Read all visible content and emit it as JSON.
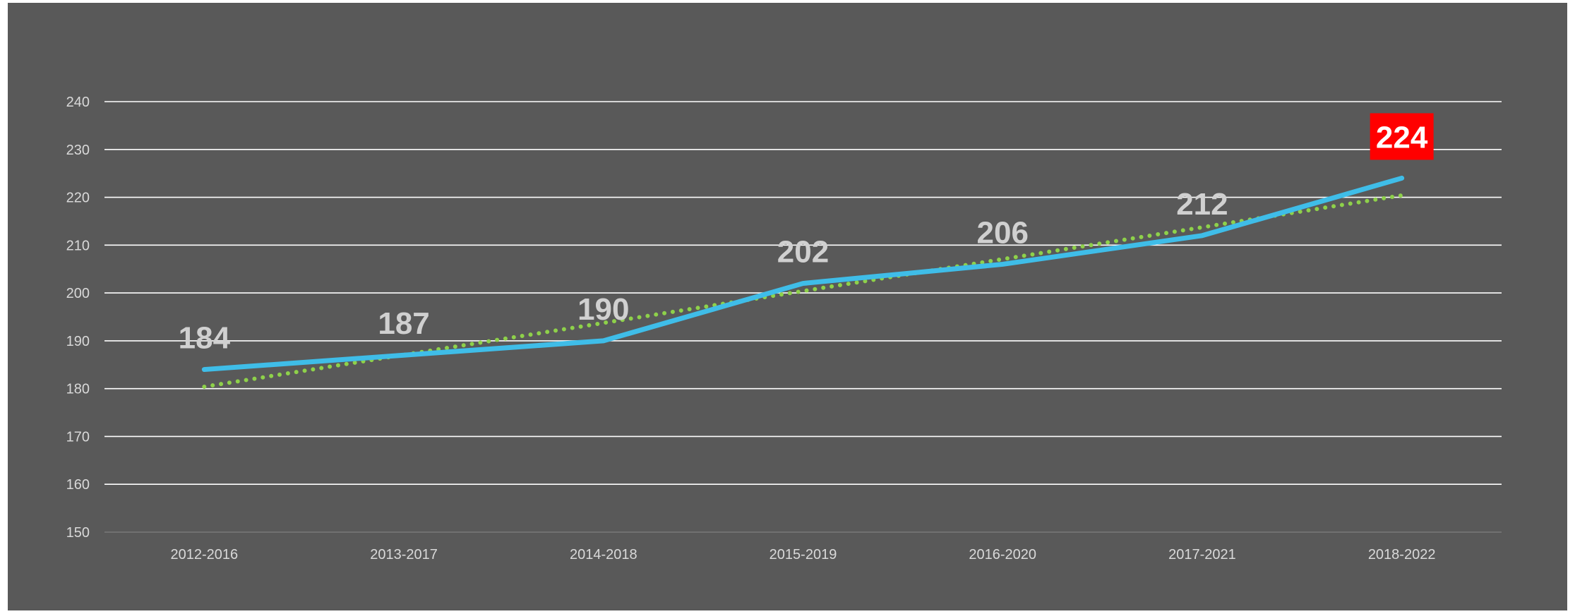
{
  "chart_data": {
    "type": "line",
    "title": "",
    "xlabel": "",
    "ylabel": "",
    "categories": [
      "2012-2016",
      "2013-2017",
      "2014-2018",
      "2015-2019",
      "2016-2020",
      "2017-2021",
      "2018-2022"
    ],
    "series": [
      {
        "values": [
          184,
          187,
          190,
          202,
          206,
          212,
          224
        ],
        "color": "#3fbde8",
        "data_labels": [
          "184",
          "187",
          "190",
          "202",
          "206",
          "212",
          "224"
        ],
        "highlight_last_label": true,
        "highlight_color": "#ff0000"
      }
    ],
    "trendline": {
      "type": "linear",
      "style": "dotted",
      "color": "#8ed14a",
      "start": 180.4,
      "end": 220.4
    },
    "ylim": [
      150,
      240
    ],
    "yticks": [
      150,
      160,
      170,
      180,
      190,
      200,
      210,
      220,
      230,
      240
    ],
    "ytick_labels": [
      "150",
      "160",
      "170",
      "180",
      "190",
      "200",
      "210",
      "220",
      "230",
      "240"
    ],
    "grid": true,
    "legend": "none",
    "background_color": "#595959",
    "gridline_color": "#ffffff"
  }
}
